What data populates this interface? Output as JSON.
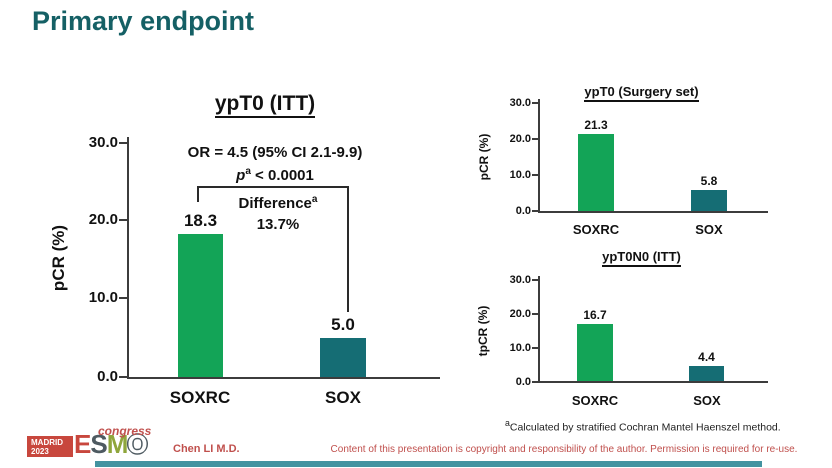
{
  "slide": {
    "title": "Primary endpoint",
    "presenter": "Chen LI M.D.",
    "footnote_sup": "a",
    "footnote": "Calculated by stratified Cochran Mantel Haenszel method.",
    "copyright": "Content of this presentation is copyright and responsibility of the author. Permission is required for re-use."
  },
  "logo": {
    "location": "MADRID",
    "year": "2023",
    "letters": [
      "E",
      "S",
      "M",
      "O"
    ],
    "suffix": "congress"
  },
  "colors": {
    "title_teal": "#156065",
    "soxrc_green": "#13a457",
    "sox_teal": "#156d74",
    "footer_red": "#c0504d",
    "logo_red": "#c8473d",
    "footer_strip": "#2f8796"
  },
  "chart_data": [
    {
      "type": "bar",
      "title": "ypT0 (ITT)",
      "ylabel": "pCR (%)",
      "ylim": [
        0,
        30
      ],
      "yticks": [
        "30.0",
        "20.0",
        "10.0",
        "0.0"
      ],
      "grid": false,
      "legend": "none",
      "categories": [
        "SOXRC",
        "SOX"
      ],
      "values": [
        18.3,
        5.0
      ],
      "value_labels": [
        "18.3",
        "5.0"
      ],
      "bar_colors": [
        "#13a457",
        "#156d74"
      ],
      "annotation": {
        "or": "OR = 4.5 (95% CI 2.1-9.9)",
        "p_symbol": "p",
        "p_sup": "a",
        "p_rest": "< 0.0001",
        "diff_label": "Difference",
        "diff_sup": "a",
        "diff_value": "13.7%"
      }
    },
    {
      "type": "bar",
      "title": "ypT0 (Surgery set)",
      "ylabel": "pCR (%)",
      "ylim": [
        0,
        30
      ],
      "yticks": [
        "30.0",
        "20.0",
        "10.0",
        "0.0"
      ],
      "grid": false,
      "legend": "none",
      "categories": [
        "SOXRC",
        "SOX"
      ],
      "values": [
        21.3,
        5.8
      ],
      "value_labels": [
        "21.3",
        "5.8"
      ],
      "bar_colors": [
        "#13a457",
        "#156d74"
      ]
    },
    {
      "type": "bar",
      "title": "ypT0N0 (ITT)",
      "ylabel": "tpCR (%)",
      "ylim": [
        0,
        30
      ],
      "yticks": [
        "30.0",
        "20.0",
        "10.0",
        "0.0"
      ],
      "grid": false,
      "legend": "none",
      "categories": [
        "SOXRC",
        "SOX"
      ],
      "values": [
        16.7,
        4.4
      ],
      "value_labels": [
        "16.7",
        "4.4"
      ],
      "bar_colors": [
        "#13a457",
        "#156d74"
      ]
    }
  ]
}
